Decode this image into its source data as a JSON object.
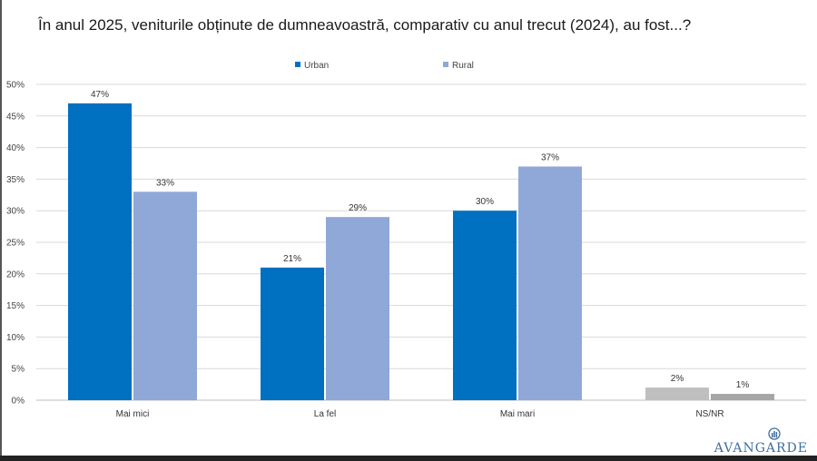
{
  "title": "În anul 2025, veniturile obținute de dumneavoastră, comparativ cu anul trecut (2024), au fost...?",
  "logo": {
    "text": "AVANGARDE"
  },
  "chart_data": {
    "type": "bar",
    "categories": [
      "Mai mici",
      "La fel",
      "Mai mari",
      "NS/NR"
    ],
    "series": [
      {
        "name": "Urban",
        "values": [
          47,
          21,
          30,
          2
        ],
        "labels": [
          "47%",
          "21%",
          "30%",
          "2%"
        ],
        "color": "#0070C0"
      },
      {
        "name": "Rural",
        "values": [
          33,
          29,
          37,
          1
        ],
        "labels": [
          "33%",
          "29%",
          "37%",
          "1%"
        ],
        "color": "#8FA8D8"
      }
    ],
    "ns_colors": [
      "#BFBFBF",
      "#A6A6A6"
    ],
    "ylim": [
      0,
      50
    ],
    "yticks": [
      "0%",
      "5%",
      "10%",
      "15%",
      "20%",
      "25%",
      "30%",
      "35%",
      "40%",
      "45%",
      "50%"
    ],
    "ytick_values": [
      0,
      5,
      10,
      15,
      20,
      25,
      30,
      35,
      40,
      45,
      50
    ],
    "grid": true,
    "legend": "top-center"
  }
}
